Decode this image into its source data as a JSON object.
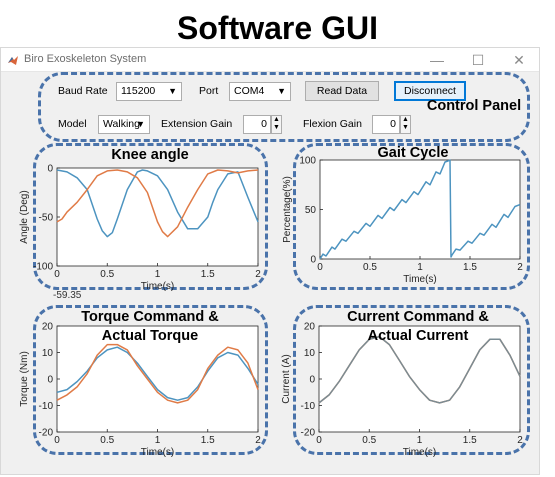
{
  "heading": "Software GUI",
  "window": {
    "title": "Biro Exoskeleton  System",
    "minimize": "—",
    "maximize": "☐",
    "close": "✕"
  },
  "control_panel": {
    "label": "Control Panel",
    "baud_rate_label": "Baud Rate",
    "baud_rate_value": "115200",
    "port_label": "Port",
    "port_value": "COM4",
    "read_data_label": "Read Data",
    "disconnect_label": "Disconnect",
    "model_label": "Model",
    "model_value": "Walking",
    "extension_gain_label": "Extension Gain",
    "extension_gain_value": "0",
    "flexion_gain_label": "Flexion Gain",
    "flexion_gain_value": "0"
  },
  "colors": {
    "accent_dashed": "#4a73aa",
    "series_blue": "#4d94c0",
    "series_orange": "#e07b47",
    "series_gray": "#7a8c94"
  },
  "stray_label": "-59.35",
  "chart_data": [
    {
      "type": "line",
      "title": "Knee angle",
      "xlabel": "Time(s)",
      "ylabel": "Angle (Deg)",
      "xlim": [
        0,
        2
      ],
      "ylim": [
        -100,
        0
      ],
      "xticks": [
        "0",
        "0.5",
        "1",
        "1.5",
        "2"
      ],
      "yticks": [
        "0",
        "-50",
        "-100"
      ],
      "series": [
        {
          "color": "#4d94c0",
          "x": [
            0,
            0.1,
            0.2,
            0.3,
            0.4,
            0.45,
            0.5,
            0.55,
            0.6,
            0.7,
            0.8,
            0.85,
            0.9,
            1.0,
            1.1,
            1.2,
            1.3,
            1.4,
            1.5,
            1.55,
            1.6,
            1.7,
            1.8,
            1.9,
            2.0
          ],
          "values": [
            -2,
            -4,
            -10,
            -22,
            -52,
            -64,
            -70,
            -66,
            -52,
            -22,
            -4,
            -2,
            -3,
            -8,
            -22,
            -45,
            -62,
            -62,
            -50,
            -35,
            -22,
            -6,
            -4,
            -30,
            -55
          ]
        },
        {
          "color": "#e07b47",
          "x": [
            0,
            0.05,
            0.1,
            0.2,
            0.3,
            0.4,
            0.5,
            0.6,
            0.7,
            0.8,
            0.9,
            1.0,
            1.05,
            1.1,
            1.2,
            1.3,
            1.4,
            1.5,
            1.6,
            1.7,
            1.8,
            1.9,
            2.0
          ],
          "values": [
            -55,
            -52,
            -45,
            -35,
            -22,
            -8,
            -3,
            -2,
            -4,
            -10,
            -25,
            -55,
            -65,
            -70,
            -60,
            -40,
            -22,
            -6,
            -2,
            -3,
            -5,
            -3,
            -2
          ]
        }
      ]
    },
    {
      "type": "line",
      "title": "Gait Cycle",
      "xlabel": "Time(s)",
      "ylabel": "Percentage(%)",
      "xlim": [
        0,
        2
      ],
      "ylim": [
        0,
        100
      ],
      "xticks": [
        "0",
        "0.5",
        "1",
        "1.5",
        "2"
      ],
      "yticks": [
        "100",
        "50",
        "0"
      ],
      "series": [
        {
          "color": "#4d94c0",
          "x": [
            0,
            0.03,
            0.06,
            0.12,
            0.15,
            0.22,
            0.26,
            0.34,
            0.38,
            0.46,
            0.5,
            0.58,
            0.62,
            0.7,
            0.74,
            0.82,
            0.86,
            0.94,
            0.98,
            1.06,
            1.1,
            1.16,
            1.2,
            1.25,
            1.28,
            1.3,
            1.31,
            1.32,
            1.36,
            1.4,
            1.48,
            1.52,
            1.6,
            1.64,
            1.72,
            1.76,
            1.84,
            1.88,
            1.95,
            2.0
          ],
          "values": [
            0,
            5,
            3,
            12,
            10,
            20,
            18,
            28,
            26,
            36,
            33,
            44,
            41,
            52,
            49,
            60,
            57,
            68,
            65,
            78,
            75,
            88,
            86,
            98,
            99,
            100,
            2,
            4,
            10,
            9,
            18,
            16,
            26,
            24,
            35,
            32,
            45,
            42,
            53,
            55
          ]
        }
      ]
    },
    {
      "type": "line",
      "title": "Torque Command & Actual Torque",
      "xlabel": "Time(s)",
      "ylabel": "Torque (Nm)",
      "xlim": [
        0,
        2
      ],
      "ylim": [
        -20,
        20
      ],
      "xticks": [
        "0",
        "0.5",
        "1",
        "1.5",
        "2"
      ],
      "yticks": [
        "20",
        "10",
        "0",
        "-10",
        "-20"
      ],
      "series": [
        {
          "color": "#4d94c0",
          "x": [
            0,
            0.1,
            0.2,
            0.3,
            0.4,
            0.5,
            0.6,
            0.7,
            0.8,
            0.9,
            1.0,
            1.1,
            1.2,
            1.3,
            1.4,
            1.5,
            1.6,
            1.7,
            1.8,
            1.9,
            2.0
          ],
          "values": [
            -5,
            -4,
            -1,
            3,
            8,
            11,
            12,
            10,
            6,
            1,
            -4,
            -7,
            -8,
            -7,
            -3,
            3,
            8,
            10,
            9,
            4,
            -2
          ]
        },
        {
          "color": "#e07b47",
          "x": [
            0,
            0.1,
            0.2,
            0.3,
            0.4,
            0.5,
            0.6,
            0.7,
            0.8,
            0.9,
            1.0,
            1.1,
            1.2,
            1.3,
            1.4,
            1.5,
            1.6,
            1.7,
            1.8,
            1.9,
            2.0
          ],
          "values": [
            -8,
            -6,
            -3,
            2,
            9,
            13,
            13,
            11,
            5,
            0,
            -5,
            -8,
            -9,
            -8,
            -4,
            4,
            9,
            12,
            11,
            6,
            -4
          ]
        }
      ]
    },
    {
      "type": "line",
      "title": "Current Command & Actual Current",
      "xlabel": "Time(s)",
      "ylabel": "Current (A)",
      "xlim": [
        0,
        2
      ],
      "ylim": [
        -20,
        20
      ],
      "xticks": [
        "0",
        "0.5",
        "1",
        "1.5",
        "2"
      ],
      "yticks": [
        "20",
        "10",
        "0",
        "-10",
        "-20"
      ],
      "series": [
        {
          "color": "#e07b47",
          "x": [
            0,
            0.1,
            0.2,
            0.3,
            0.4,
            0.5,
            0.6,
            0.7,
            0.8,
            0.9,
            1.0,
            1.1,
            1.2,
            1.3,
            1.4,
            1.5,
            1.6,
            1.7,
            1.8,
            1.9,
            2.0
          ],
          "values": [
            -9,
            -6,
            -1,
            5,
            11,
            15,
            16,
            13,
            7,
            1,
            -4,
            -8,
            -9,
            -8,
            -3,
            4,
            11,
            15,
            15,
            9,
            1
          ]
        },
        {
          "color": "#7a8c94",
          "x": [
            0,
            0.1,
            0.2,
            0.3,
            0.4,
            0.5,
            0.6,
            0.7,
            0.8,
            0.9,
            1.0,
            1.1,
            1.2,
            1.3,
            1.4,
            1.5,
            1.6,
            1.7,
            1.8,
            1.9,
            2.0
          ],
          "values": [
            -9,
            -6,
            -1,
            5,
            11,
            15,
            16,
            13,
            7,
            1,
            -4,
            -8,
            -9,
            -8,
            -3,
            4,
            11,
            15,
            15,
            9,
            1
          ]
        }
      ]
    }
  ]
}
